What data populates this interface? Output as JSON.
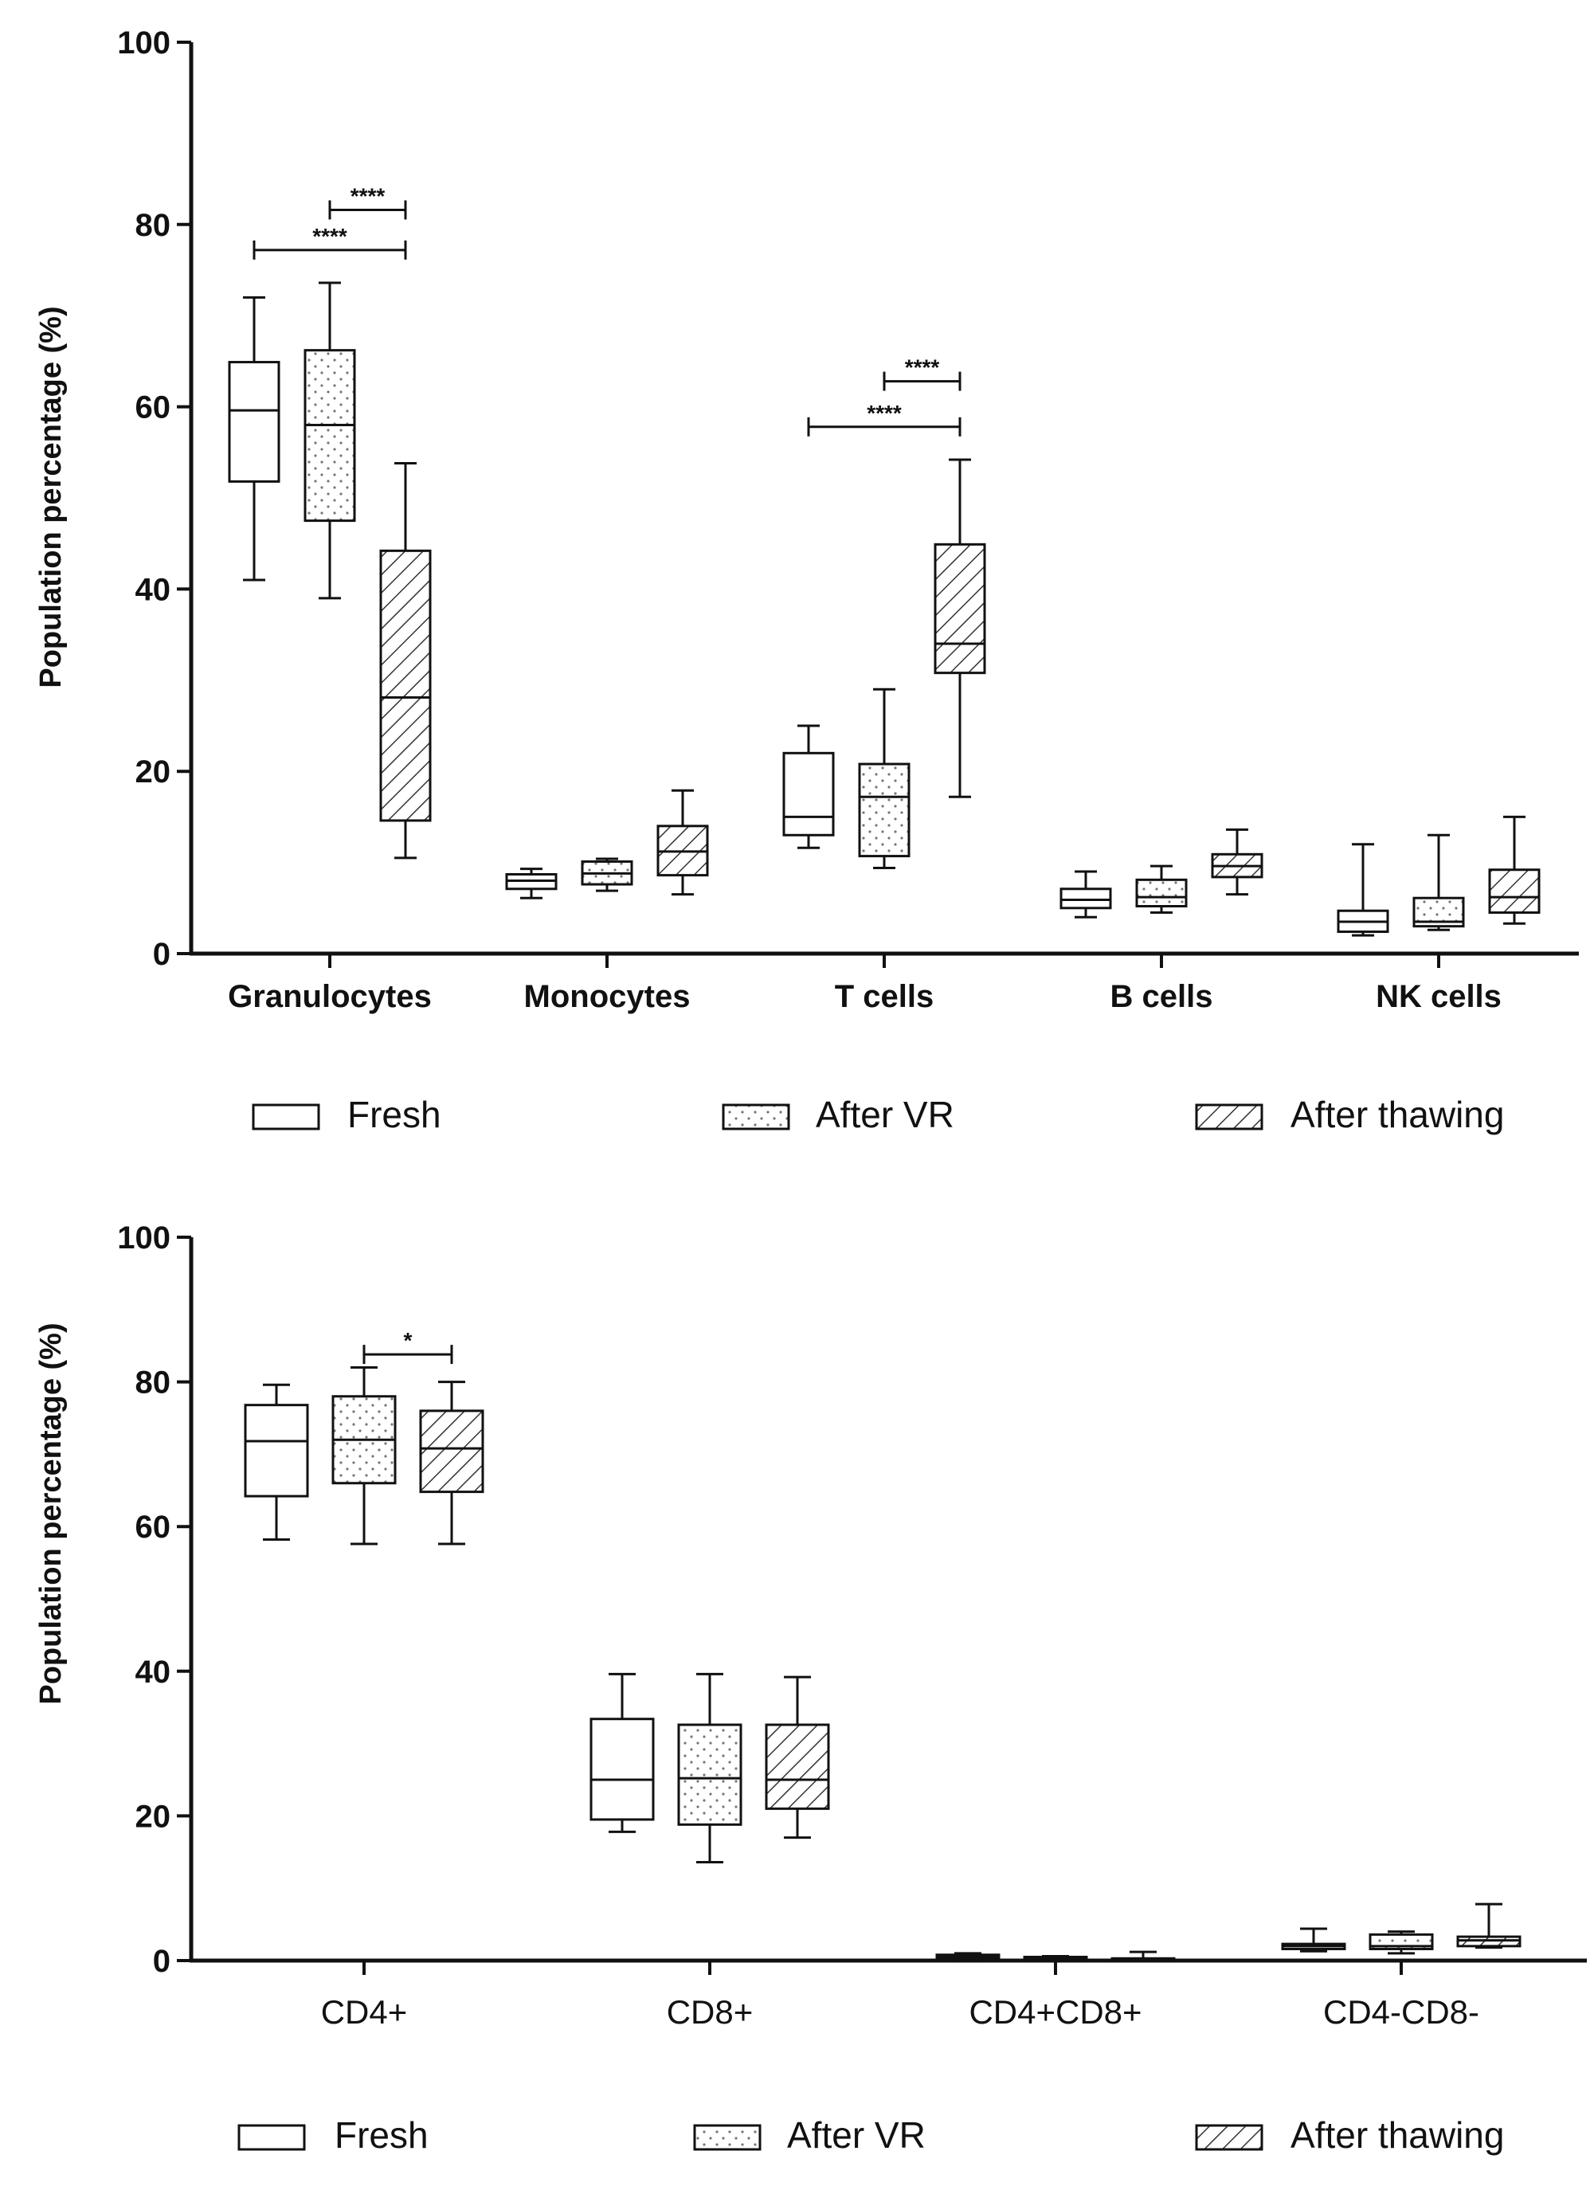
{
  "chart_data": [
    {
      "type": "box",
      "title": "",
      "ylabel": "Population percentage (%)",
      "xlabel": "",
      "ylim": [
        0,
        100
      ],
      "yticks": [
        "0",
        "20",
        "40",
        "60",
        "80",
        "100"
      ],
      "categories": [
        "Granulocytes",
        "Monocytes",
        "T cells",
        "B cells",
        "NK cells"
      ],
      "series": [
        {
          "name": "Fresh",
          "pattern": "none",
          "boxes": [
            {
              "min": 41,
              "q1": 51.8,
              "median": 59.6,
              "q3": 64.9,
              "max": 72
            },
            {
              "min": 6.1,
              "q1": 7.1,
              "median": 8.0,
              "q3": 8.7,
              "max": 9.3
            },
            {
              "min": 11.6,
              "q1": 13.0,
              "median": 15.0,
              "q3": 22.0,
              "max": 25.0
            },
            {
              "min": 4.0,
              "q1": 5.0,
              "median": 5.9,
              "q3": 7.1,
              "max": 9.0
            },
            {
              "min": 2.0,
              "q1": 2.4,
              "median": 3.5,
              "q3": 4.7,
              "max": 12.0
            }
          ]
        },
        {
          "name": "After VR",
          "pattern": "dots",
          "boxes": [
            {
              "min": 39,
              "q1": 47.5,
              "median": 58.0,
              "q3": 66.2,
              "max": 73.6
            },
            {
              "min": 6.9,
              "q1": 7.6,
              "median": 8.8,
              "q3": 10.1,
              "max": 10.4
            },
            {
              "min": 9.4,
              "q1": 10.7,
              "median": 17.2,
              "q3": 20.8,
              "max": 29.0
            },
            {
              "min": 4.5,
              "q1": 5.2,
              "median": 6.2,
              "q3": 8.1,
              "max": 9.6
            },
            {
              "min": 2.6,
              "q1": 3.0,
              "median": 3.5,
              "q3": 6.1,
              "max": 13.0
            }
          ]
        },
        {
          "name": "After thawing",
          "pattern": "hatch",
          "boxes": [
            {
              "min": 10.5,
              "q1": 14.6,
              "median": 28.1,
              "q3": 44.2,
              "max": 53.8
            },
            {
              "min": 6.5,
              "q1": 8.6,
              "median": 11.2,
              "q3": 14.0,
              "max": 17.9
            },
            {
              "min": 17.2,
              "q1": 30.8,
              "median": 34.0,
              "q3": 44.9,
              "max": 54.2
            },
            {
              "min": 6.5,
              "q1": 8.4,
              "median": 9.6,
              "q3": 10.9,
              "max": 13.6
            },
            {
              "min": 3.3,
              "q1": 4.5,
              "median": 6.2,
              "q3": 9.2,
              "max": 15.0
            }
          ]
        }
      ],
      "annotations": [
        {
          "text": "****",
          "category": "Granulocytes",
          "from": "After VR",
          "to": "After thawing",
          "y": 81.6
        },
        {
          "text": "****",
          "category": "Granulocytes",
          "from": "Fresh",
          "to": "After thawing",
          "y": 77.2
        },
        {
          "text": "****",
          "category": "T cells",
          "from": "After VR",
          "to": "After thawing",
          "y": 62.8
        },
        {
          "text": "****",
          "category": "T cells",
          "from": "Fresh",
          "to": "After thawing",
          "y": 57.8
        }
      ],
      "legend": [
        "Fresh",
        "After VR",
        "After thawing"
      ]
    },
    {
      "type": "box",
      "title": "",
      "ylabel": "Population percentage (%)",
      "xlabel": "",
      "ylim": [
        0,
        100
      ],
      "yticks": [
        "0",
        "20",
        "40",
        "60",
        "80",
        "100"
      ],
      "categories": [
        "CD4+",
        "CD8+",
        "CD4+CD8+",
        "CD4-CD8-"
      ],
      "series": [
        {
          "name": "Fresh",
          "pattern": "none",
          "boxes": [
            {
              "min": 58.2,
              "q1": 64.2,
              "median": 71.8,
              "q3": 76.8,
              "max": 79.6
            },
            {
              "min": 17.8,
              "q1": 19.5,
              "median": 25.0,
              "q3": 33.4,
              "max": 39.6
            },
            {
              "min": 0.2,
              "q1": 0.4,
              "median": 0.6,
              "q3": 0.8,
              "max": 1.0
            },
            {
              "min": 1.3,
              "q1": 1.6,
              "median": 2.0,
              "q3": 2.3,
              "max": 4.4
            }
          ]
        },
        {
          "name": "After VR",
          "pattern": "dots",
          "boxes": [
            {
              "min": 57.6,
              "q1": 66.0,
              "median": 72.0,
              "q3": 78.0,
              "max": 82.0
            },
            {
              "min": 13.6,
              "q1": 18.8,
              "median": 25.2,
              "q3": 32.6,
              "max": 39.6
            },
            {
              "min": 0.1,
              "q1": 0.2,
              "median": 0.3,
              "q3": 0.5,
              "max": 0.6
            },
            {
              "min": 1.0,
              "q1": 1.6,
              "median": 2.0,
              "q3": 3.6,
              "max": 4.0
            }
          ]
        },
        {
          "name": "After thawing",
          "pattern": "hatch",
          "boxes": [
            {
              "min": 57.6,
              "q1": 64.8,
              "median": 70.8,
              "q3": 76.0,
              "max": 80.0
            },
            {
              "min": 17.0,
              "q1": 21.0,
              "median": 25.0,
              "q3": 32.6,
              "max": 39.2
            },
            {
              "min": 0.1,
              "q1": 0.1,
              "median": 0.2,
              "q3": 0.3,
              "max": 1.2
            },
            {
              "min": 1.8,
              "q1": 2.0,
              "median": 2.8,
              "q3": 3.3,
              "max": 7.8
            }
          ]
        }
      ],
      "annotations": [
        {
          "text": "*",
          "category": "CD4+",
          "from": "After VR",
          "to": "After thawing",
          "y": 83.8
        }
      ],
      "legend": [
        "Fresh",
        "After VR",
        "After thawing"
      ]
    }
  ]
}
